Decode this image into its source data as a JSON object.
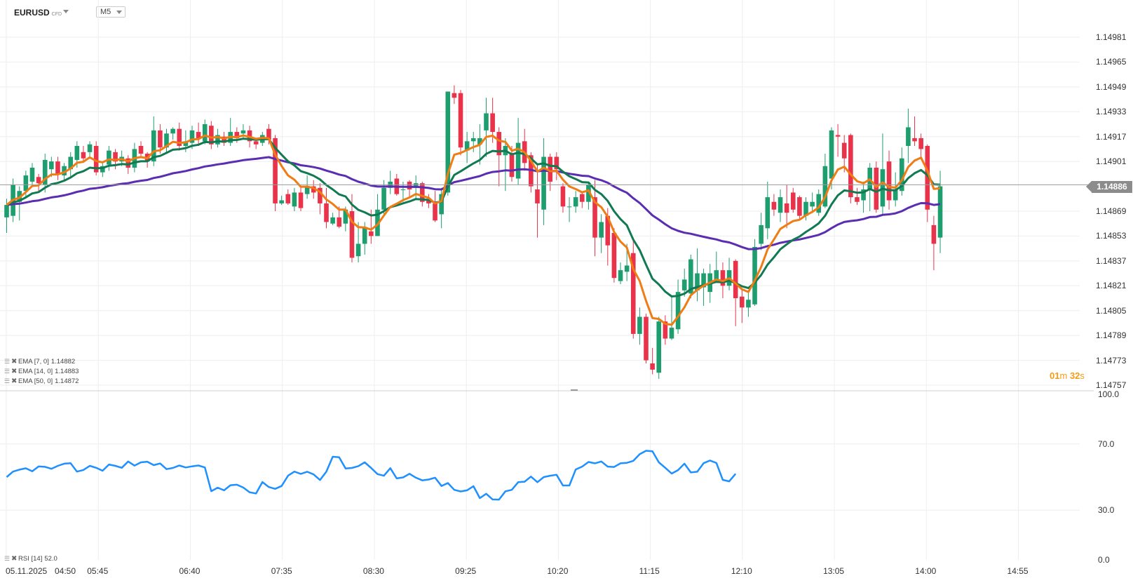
{
  "header": {
    "symbol": "EURUSD",
    "symbol_badge": "CFD",
    "timeframe": "M5"
  },
  "price_panel": {
    "y_ticks": [
      "1.14981",
      "1.14965",
      "1.14949",
      "1.14933",
      "1.14917",
      "1.14901",
      "1.14869",
      "1.14853",
      "1.14837",
      "1.14821",
      "1.14805",
      "1.14789",
      "1.14773",
      "1.14757"
    ],
    "current_price": "1.14886",
    "countdown": {
      "min": "01",
      "min_unit": "m",
      "sec": "32",
      "sec_unit": "s"
    },
    "legend": [
      {
        "label": "EMA",
        "params": "[7, 0]",
        "value": "1.14882"
      },
      {
        "label": "EMA",
        "params": "[14, 0]",
        "value": "1.14883"
      },
      {
        "label": "EMA",
        "params": "[50, 0]",
        "value": "1.14872"
      }
    ]
  },
  "rsi_panel": {
    "y_ticks": [
      "100.0",
      "70.0",
      "30.0",
      "0.0"
    ],
    "legend": {
      "label": "RSI",
      "params": "[14]",
      "value": "52.0"
    }
  },
  "x_axis": {
    "date_label": "05.11.2025",
    "ticks": [
      "04:50",
      "05:45",
      "06:40",
      "07:35",
      "08:30",
      "09:25",
      "10:20",
      "11:15",
      "12:10",
      "13:05",
      "14:00",
      "14:55"
    ]
  },
  "colors": {
    "bull": "#1e9e6e",
    "bear": "#e8334a",
    "ema7": "#f07c14",
    "ema14": "#117a52",
    "ema50": "#5b2db0",
    "rsi": "#1e90ff",
    "grid": "#eeeeee",
    "price_line": "#9a9a9a",
    "countdown": "#f39c12"
  },
  "chart_data": [
    {
      "type": "candlestick",
      "timeframe": "M5",
      "x_start": "04:50",
      "ylim": [
        1.14757,
        1.14995
      ],
      "candles": [
        [
          1.14865,
          1.14873,
          1.14855,
          1.14877
        ],
        [
          1.14866,
          1.14886,
          1.14862,
          1.1489
        ],
        [
          1.14875,
          1.14882,
          1.14863,
          1.14885
        ],
        [
          1.14882,
          1.14892,
          1.14877,
          1.14895
        ],
        [
          1.14888,
          1.14897,
          1.14885,
          1.149
        ],
        [
          1.14891,
          1.14887,
          1.14882,
          1.14893
        ],
        [
          1.14886,
          1.14902,
          1.14881,
          1.14906
        ],
        [
          1.14896,
          1.14901,
          1.14891,
          1.14904
        ],
        [
          1.14901,
          1.14893,
          1.14889,
          1.14904
        ],
        [
          1.14892,
          1.14898,
          1.14888,
          1.149
        ],
        [
          1.14896,
          1.14904,
          1.14891,
          1.14907
        ],
        [
          1.14902,
          1.14911,
          1.14897,
          1.14914
        ],
        [
          1.14907,
          1.14903,
          1.149,
          1.14911
        ],
        [
          1.14907,
          1.14912,
          1.14903,
          1.14914
        ],
        [
          1.14911,
          1.14894,
          1.14892,
          1.14914
        ],
        [
          1.14894,
          1.14898,
          1.14891,
          1.14901
        ],
        [
          1.14899,
          1.14908,
          1.14895,
          1.14911
        ],
        [
          1.14907,
          1.14901,
          1.14896,
          1.14909
        ],
        [
          1.14901,
          1.14904,
          1.14898,
          1.14908
        ],
        [
          1.14903,
          1.14897,
          1.14893,
          1.14905
        ],
        [
          1.14897,
          1.14909,
          1.14894,
          1.14913
        ],
        [
          1.14911,
          1.14906,
          1.14903,
          1.14914
        ],
        [
          1.14906,
          1.14901,
          1.14897,
          1.14907
        ],
        [
          1.14901,
          1.14921,
          1.14898,
          1.1493
        ],
        [
          1.14921,
          1.1491,
          1.14906,
          1.14925
        ],
        [
          1.1491,
          1.14919,
          1.14907,
          1.14922
        ],
        [
          1.14919,
          1.14922,
          1.14915,
          1.14923
        ],
        [
          1.14922,
          1.14911,
          1.14908,
          1.14926
        ],
        [
          1.14911,
          1.14914,
          1.14907,
          1.14921
        ],
        [
          1.14913,
          1.14921,
          1.14909,
          1.14924
        ],
        [
          1.1492,
          1.14916,
          1.14911,
          1.14926
        ],
        [
          1.14914,
          1.14925,
          1.14912,
          1.14928
        ],
        [
          1.14924,
          1.14912,
          1.14909,
          1.14927
        ],
        [
          1.14912,
          1.14918,
          1.1491,
          1.14922
        ],
        [
          1.14917,
          1.14913,
          1.14911,
          1.1492
        ],
        [
          1.14913,
          1.1492,
          1.14911,
          1.14929
        ],
        [
          1.1492,
          1.14916,
          1.14913,
          1.14923
        ],
        [
          1.14919,
          1.14921,
          1.14916,
          1.14925
        ],
        [
          1.14921,
          1.14914,
          1.1491,
          1.14924
        ],
        [
          1.14914,
          1.14912,
          1.14909,
          1.14916
        ],
        [
          1.14913,
          1.14918,
          1.14911,
          1.1492
        ],
        [
          1.14922,
          1.14915,
          1.14912,
          1.14925
        ],
        [
          1.14916,
          1.14874,
          1.14869,
          1.14918
        ],
        [
          1.14874,
          1.14876,
          1.14873,
          1.14879
        ],
        [
          1.1488,
          1.14874,
          1.14873,
          1.14883
        ],
        [
          1.14872,
          1.14881,
          1.14869,
          1.14884
        ],
        [
          1.14881,
          1.14871,
          1.14869,
          1.14885
        ],
        [
          1.1488,
          1.14885,
          1.14877,
          1.14892
        ],
        [
          1.14885,
          1.14881,
          1.14877,
          1.14889
        ],
        [
          1.14884,
          1.14874,
          1.14867,
          1.14887
        ],
        [
          1.14874,
          1.14862,
          1.14858,
          1.14884
        ],
        [
          1.14861,
          1.14865,
          1.1486,
          1.14868
        ],
        [
          1.14865,
          1.14859,
          1.14858,
          1.14872
        ],
        [
          1.14861,
          1.1487,
          1.14856,
          1.14872
        ],
        [
          1.14869,
          1.14839,
          1.14836,
          1.1488
        ],
        [
          1.1484,
          1.14848,
          1.14836,
          1.14862
        ],
        [
          1.14848,
          1.14858,
          1.14841,
          1.14862
        ],
        [
          1.14856,
          1.14853,
          1.14848,
          1.1487
        ],
        [
          1.14853,
          1.1487,
          1.14853,
          1.1488
        ],
        [
          1.1487,
          1.14884,
          1.14867,
          1.14889
        ],
        [
          1.14884,
          1.14888,
          1.1488,
          1.14895
        ],
        [
          1.1489,
          1.1488,
          1.14879,
          1.14893
        ],
        [
          1.14883,
          1.14883,
          1.14875,
          1.14888
        ],
        [
          1.14888,
          1.14883,
          1.14878,
          1.14889
        ],
        [
          1.14884,
          1.14887,
          1.14877,
          1.14892
        ],
        [
          1.14887,
          1.14875,
          1.14872,
          1.14888
        ],
        [
          1.14877,
          1.14874,
          1.14871,
          1.1488
        ],
        [
          1.14874,
          1.14863,
          1.14862,
          1.14882
        ],
        [
          1.14867,
          1.1488,
          1.14858,
          1.14884
        ],
        [
          1.14881,
          1.14946,
          1.14879,
          1.14946
        ],
        [
          1.14945,
          1.14942,
          1.14938,
          1.1495
        ],
        [
          1.14945,
          1.1491,
          1.14905,
          1.14947
        ],
        [
          1.14908,
          1.14914,
          1.149,
          1.1492
        ],
        [
          1.14914,
          1.14916,
          1.14907,
          1.1492
        ],
        [
          1.14912,
          1.14916,
          1.14899,
          1.14925
        ],
        [
          1.14921,
          1.14932,
          1.14904,
          1.14942
        ],
        [
          1.14932,
          1.1492,
          1.14913,
          1.14942
        ],
        [
          1.1492,
          1.14905,
          1.14885,
          1.14923
        ],
        [
          1.14905,
          1.14911,
          1.14882,
          1.14916
        ],
        [
          1.14906,
          1.14891,
          1.14888,
          1.14911
        ],
        [
          1.1489,
          1.14913,
          1.14886,
          1.14929
        ],
        [
          1.14914,
          1.149,
          1.14895,
          1.14922
        ],
        [
          1.14905,
          1.14885,
          1.14881,
          1.14907
        ],
        [
          1.14883,
          1.14874,
          1.14852,
          1.14899
        ],
        [
          1.1487,
          1.14904,
          1.1486,
          1.14916
        ],
        [
          1.14904,
          1.14888,
          1.14882,
          1.14906
        ],
        [
          1.14904,
          1.14896,
          1.14889,
          1.14907
        ],
        [
          1.14885,
          1.14872,
          1.14868,
          1.14887
        ],
        [
          1.14872,
          1.14872,
          1.14862,
          1.14878
        ],
        [
          1.14872,
          1.14878,
          1.14868,
          1.14882
        ],
        [
          1.1488,
          1.14875,
          1.14871,
          1.14881
        ],
        [
          1.14875,
          1.14886,
          1.1487,
          1.14888
        ],
        [
          1.14878,
          1.14852,
          1.1484,
          1.14889
        ],
        [
          1.14852,
          1.14862,
          1.14842,
          1.14867
        ],
        [
          1.14866,
          1.14847,
          1.14834,
          1.14871
        ],
        [
          1.14855,
          1.14826,
          1.14823,
          1.14858
        ],
        [
          1.14824,
          1.14831,
          1.14822,
          1.14836
        ],
        [
          1.1483,
          1.14834,
          1.14824,
          1.14848
        ],
        [
          1.14842,
          1.1479,
          1.14787,
          1.14852
        ],
        [
          1.1479,
          1.14801,
          1.14783,
          1.14807
        ],
        [
          1.14801,
          1.14773,
          1.14771,
          1.14803
        ],
        [
          1.14771,
          1.14767,
          1.14764,
          1.14781
        ],
        [
          1.14765,
          1.14798,
          1.14761,
          1.14801
        ],
        [
          1.14798,
          1.14787,
          1.14783,
          1.14802
        ],
        [
          1.14787,
          1.14794,
          1.14786,
          1.14815
        ],
        [
          1.14793,
          1.14817,
          1.1479,
          1.14825
        ],
        [
          1.14818,
          1.14825,
          1.14814,
          1.14832
        ],
        [
          1.14816,
          1.14838,
          1.14813,
          1.14841
        ],
        [
          1.14818,
          1.14829,
          1.14811,
          1.14845
        ],
        [
          1.1482,
          1.14829,
          1.14808,
          1.14832
        ],
        [
          1.14817,
          1.14829,
          1.1481,
          1.14835
        ],
        [
          1.14825,
          1.14831,
          1.14824,
          1.14843
        ],
        [
          1.14831,
          1.14821,
          1.14813,
          1.14836
        ],
        [
          1.14821,
          1.14831,
          1.14818,
          1.14839
        ],
        [
          1.14837,
          1.14813,
          1.14795,
          1.14838
        ],
        [
          1.14814,
          1.14807,
          1.14797,
          1.14819
        ],
        [
          1.14807,
          1.14812,
          1.14801,
          1.14817
        ],
        [
          1.14809,
          1.14846,
          1.14808,
          1.14851
        ],
        [
          1.14848,
          1.1486,
          1.14844,
          1.14868
        ],
        [
          1.14858,
          1.14878,
          1.14851,
          1.14888
        ],
        [
          1.14875,
          1.1487,
          1.14866,
          1.1488
        ],
        [
          1.14868,
          1.14878,
          1.14862,
          1.14883
        ],
        [
          1.14874,
          1.14868,
          1.14858,
          1.14886
        ],
        [
          1.14881,
          1.1487,
          1.14868,
          1.14884
        ],
        [
          1.14878,
          1.14866,
          1.14864,
          1.14879
        ],
        [
          1.14866,
          1.14875,
          1.14863,
          1.14878
        ],
        [
          1.14872,
          1.14875,
          1.14869,
          1.14881
        ],
        [
          1.14868,
          1.1488,
          1.14866,
          1.14883
        ],
        [
          1.14872,
          1.14898,
          1.14871,
          1.14906
        ],
        [
          1.1489,
          1.14921,
          1.14883,
          1.14923
        ],
        [
          1.14918,
          1.14917,
          1.14904,
          1.14925
        ],
        [
          1.14913,
          1.14903,
          1.14894,
          1.14918
        ],
        [
          1.14918,
          1.14878,
          1.14874,
          1.14919
        ],
        [
          1.14878,
          1.14875,
          1.14873,
          1.14884
        ],
        [
          1.14876,
          1.14883,
          1.14868,
          1.14888
        ],
        [
          1.14883,
          1.14897,
          1.14869,
          1.149
        ],
        [
          1.14897,
          1.1487,
          1.14868,
          1.14901
        ],
        [
          1.14872,
          1.14896,
          1.14867,
          1.14919
        ],
        [
          1.14901,
          1.14876,
          1.1487,
          1.14908
        ],
        [
          1.14876,
          1.14883,
          1.14872,
          1.14894
        ],
        [
          1.14882,
          1.14903,
          1.14879,
          1.1491
        ],
        [
          1.14911,
          1.14923,
          1.149,
          1.14935
        ],
        [
          1.14916,
          1.14914,
          1.14911,
          1.1493
        ],
        [
          1.14916,
          1.14909,
          1.14903,
          1.14919
        ],
        [
          1.14911,
          1.1487,
          1.14862,
          1.14912
        ],
        [
          1.1486,
          1.14848,
          1.14831,
          1.14866
        ],
        [
          1.14852,
          1.14885,
          1.14842,
          1.14895
        ]
      ]
    },
    {
      "type": "line",
      "series": [
        {
          "name": "EMA [7, 0]",
          "key": "ema7"
        },
        {
          "name": "EMA [14, 0]",
          "key": "ema14"
        },
        {
          "name": "EMA [50, 0]",
          "key": "ema50"
        }
      ],
      "last_values": {
        "ema7": 1.14882,
        "ema14": 1.14883,
        "ema50": 1.14872
      }
    },
    {
      "type": "line",
      "name": "RSI [14]",
      "ylim": [
        0,
        100
      ],
      "values": [
        50.0,
        53.3,
        54.5,
        55.3,
        53.5,
        56.4,
        56.2,
        55.0,
        56.8,
        58.1,
        58.4,
        53.3,
        54.3,
        56.8,
        55.6,
        53.8,
        57.6,
        56.8,
        55.6,
        59.4,
        56.9,
        58.9,
        59.3,
        57.2,
        58.2,
        54.8,
        55.5,
        57.0,
        55.8,
        56.5,
        57.0,
        55.8,
        41.5,
        43.6,
        42.0,
        45.1,
        45.4,
        43.7,
        40.8,
        40.1,
        47.0,
        44.0,
        42.9,
        44.6,
        50.8,
        53.3,
        51.9,
        53.2,
        51.6,
        48.2,
        53.3,
        62.3,
        62.0,
        55.2,
        55.5,
        56.6,
        58.9,
        55.5,
        51.8,
        50.8,
        55.4,
        49.2,
        49.8,
        52.0,
        49.6,
        48.0,
        48.5,
        49.6,
        44.6,
        46.4,
        42.3,
        41.3,
        42.0,
        44.5,
        37.3,
        39.9,
        36.5,
        36.4,
        41.4,
        42.3,
        46.9,
        47.2,
        50.3,
        46.9,
        50.0,
        50.8,
        51.4,
        44.9,
        44.9,
        54.6,
        56.3,
        59.1,
        58.3,
        59.4,
        56.3,
        56.1,
        58.3,
        58.6,
        59.8,
        63.8,
        65.9,
        65.6,
        58.9,
        55.6,
        52.1,
        54.2,
        58.1,
        52.8,
        53.2,
        58.4,
        60.0,
        58.5,
        48.3,
        47.4,
        52.0
      ]
    }
  ]
}
